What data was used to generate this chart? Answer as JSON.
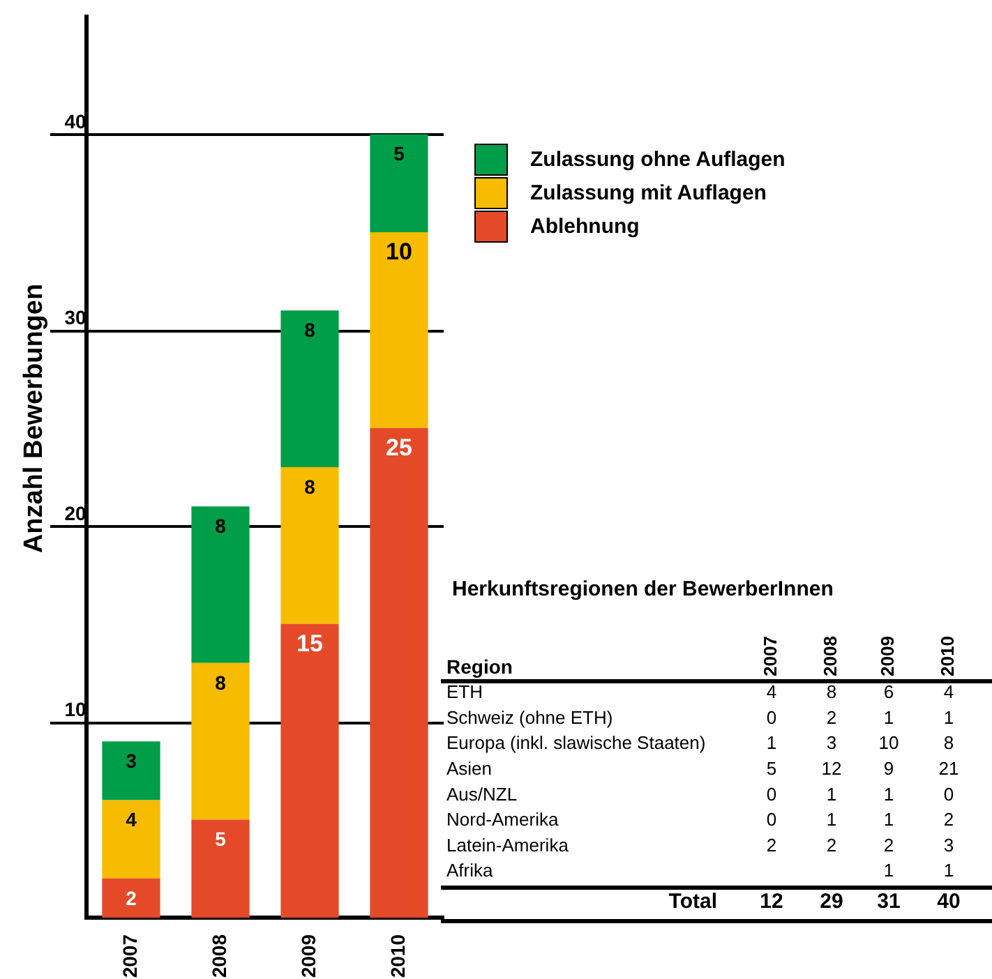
{
  "chart_data": [
    {
      "type": "bar",
      "stacked": true,
      "ylabel": "Anzahl Bewerbungen",
      "categories": [
        "2007",
        "2008",
        "2009",
        "2010"
      ],
      "series": [
        {
          "name": "Ablehnung",
          "color": "#e44a28",
          "values": [
            2,
            5,
            15,
            25
          ]
        },
        {
          "name": "Zulassung mit Auflagen",
          "color": "#f7bb00",
          "values": [
            4,
            8,
            8,
            10
          ]
        },
        {
          "name": "Zulassung ohne Auflagen",
          "color": "#009e49",
          "values": [
            3,
            8,
            8,
            5
          ]
        }
      ],
      "ylim": [
        0,
        46
      ],
      "yticks": [
        10,
        20,
        30,
        40
      ],
      "grid": "y",
      "legend": "top right",
      "data_labels": true
    },
    {
      "type": "heatmap",
      "title": "Herkunftsregionen der BewerberInnen",
      "ylabel": "Region",
      "categories": [
        "2007",
        "2008",
        "2009",
        "2010"
      ],
      "y_categories": [
        "ETH",
        "Schweiz (ohne ETH)",
        "Europa (inkl. slawische Staaten)",
        "Asien",
        "Aus/NZL",
        "Nord-Amerika",
        "Latein-Amerika",
        "Afrika",
        "Total"
      ],
      "cells": [
        [
          4,
          8,
          6,
          4
        ],
        [
          0,
          2,
          1,
          1
        ],
        [
          1,
          3,
          10,
          8
        ],
        [
          5,
          12,
          9,
          21
        ],
        [
          0,
          1,
          1,
          0
        ],
        [
          0,
          1,
          1,
          2
        ],
        [
          2,
          2,
          2,
          3
        ],
        [
          null,
          null,
          1,
          1
        ],
        [
          12,
          29,
          31,
          40
        ]
      ],
      "data_labels": true
    }
  ]
}
